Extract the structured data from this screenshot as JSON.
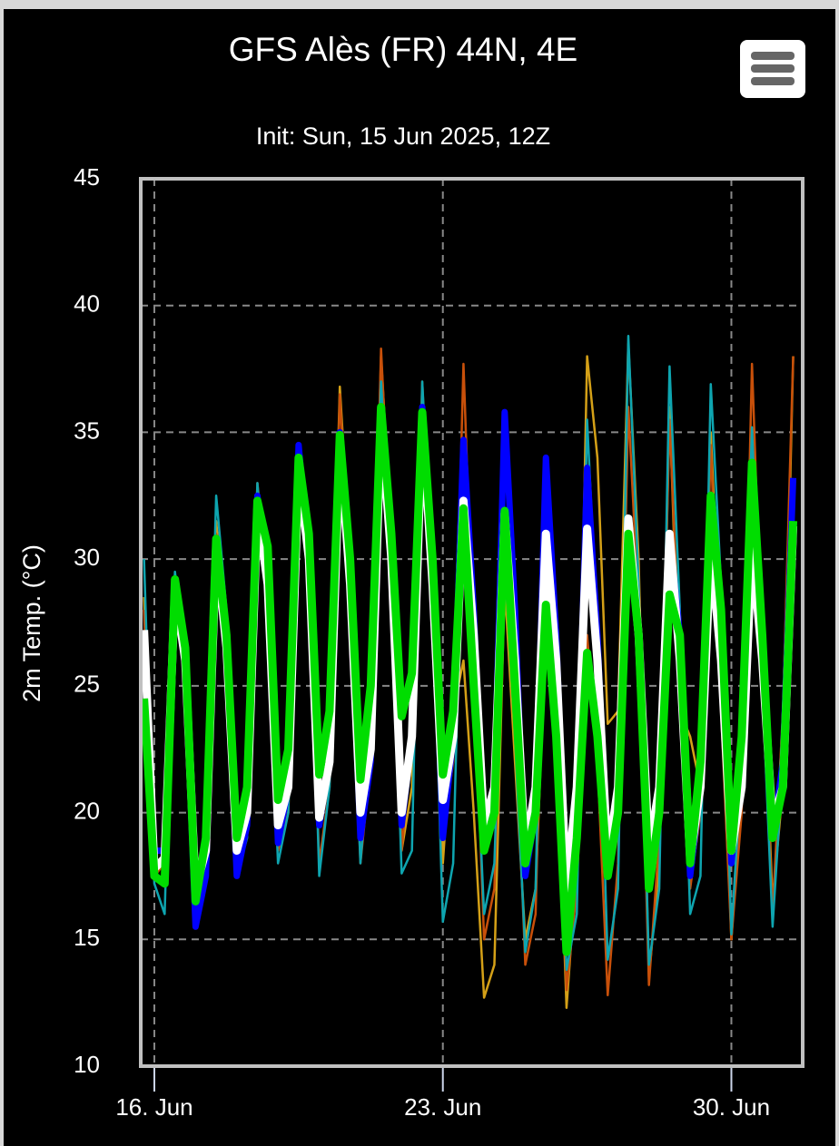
{
  "chart_data": {
    "type": "line",
    "title": "GFS Alès (FR) 44N, 4E",
    "subtitle": "Init: Sun, 15 Jun 2025, 12Z",
    "y_label": "2m Temp. (°C)",
    "x": [
      0.75,
      1,
      1.25,
      1.5,
      1.75,
      2,
      2.25,
      2.5,
      2.75,
      3,
      3.25,
      3.5,
      3.75,
      4,
      4.25,
      4.5,
      4.75,
      5,
      5.25,
      5.5,
      5.75,
      6,
      6.25,
      6.5,
      6.75,
      7,
      7.25,
      7.5,
      7.75,
      8,
      8.25,
      8.5,
      8.75,
      9,
      9.25,
      9.5,
      9.75,
      10,
      10.25,
      10.5,
      10.75,
      11,
      11.25,
      11.5,
      11.75,
      12,
      12.25,
      12.5,
      12.75,
      13,
      13.25,
      13.5,
      13.75,
      14,
      14.25,
      14.5,
      14.75,
      15,
      15.25,
      15.5,
      15.75,
      16,
      16.25,
      16.5
    ],
    "xlim": [
      0.67,
      16.73
    ],
    "xticks": [
      {
        "value": 1,
        "label": "16. Jun"
      },
      {
        "value": 8,
        "label": "23. Jun"
      },
      {
        "value": 15,
        "label": "30. Jun"
      }
    ],
    "ylim": [
      10,
      45
    ],
    "yticks": [
      10,
      15,
      20,
      25,
      30,
      35,
      40,
      45
    ],
    "grid": true,
    "series": [
      {
        "color": "#d4a017",
        "width": 2.5,
        "values": [
          28.5,
          18,
          18,
          29,
          25,
          16.5,
          18,
          31.5,
          27,
          18,
          20,
          32,
          28,
          18.5,
          21,
          34,
          31,
          19.5,
          22,
          36.8,
          30,
          19,
          22,
          38,
          31,
          18.5,
          21,
          36,
          29,
          18,
          24,
          26,
          20,
          12.7,
          14,
          29,
          22,
          15,
          17,
          27,
          24,
          12.3,
          18,
          38,
          34,
          23.5,
          24,
          38.5,
          30,
          13.5,
          18,
          36,
          24,
          23,
          21,
          35,
          26,
          15,
          21,
          33,
          26.5,
          16.5,
          21,
          38
        ]
      },
      {
        "color": "#c8500a",
        "width": 2.5,
        "values": [
          28,
          17.5,
          18,
          28.5,
          26,
          16,
          18,
          31,
          27,
          17.5,
          21,
          33,
          29,
          18.5,
          20,
          33.5,
          30,
          18,
          21,
          36.5,
          29,
          18,
          22,
          38.3,
          30,
          18.5,
          23,
          37,
          28,
          19,
          22,
          37.7,
          26,
          15,
          17,
          30,
          24,
          14,
          16,
          32,
          25,
          13,
          17,
          27,
          22,
          12.8,
          18,
          36,
          28,
          13.2,
          19,
          35.5,
          26,
          17,
          20,
          34.5,
          24,
          15,
          20,
          37.7,
          26,
          16,
          24,
          38
        ]
      },
      {
        "color": "#0ea5b0",
        "width": 2.5,
        "values": [
          30,
          17.2,
          16,
          29.5,
          26,
          15.8,
          18,
          32.5,
          28,
          17.5,
          19,
          33,
          28,
          18,
          20,
          33,
          31,
          17.5,
          21,
          35,
          28,
          18,
          23,
          37,
          30,
          17.6,
          18.5,
          37,
          29,
          15.7,
          18,
          33.5,
          25,
          16,
          18,
          30,
          23,
          14.5,
          17,
          34,
          26,
          13.8,
          16,
          35.5,
          27,
          14.2,
          17,
          38.8,
          29,
          14,
          17,
          37.6,
          28,
          16,
          17.5,
          36.9,
          29,
          15.2,
          22,
          35.2,
          25,
          15.5,
          22,
          33
        ]
      },
      {
        "color": "#0000ff",
        "width": 7,
        "values": [
          26.8,
          18.5,
          18.5,
          29,
          26,
          15.5,
          17.5,
          30.5,
          27,
          17.5,
          19.5,
          32.5,
          29,
          18.8,
          21,
          34.5,
          30,
          19.5,
          22,
          35,
          29,
          19,
          22,
          36,
          30,
          19.5,
          23,
          36,
          30,
          19,
          23,
          34.7,
          28,
          18.5,
          21,
          35.8,
          28,
          17.5,
          20,
          34,
          27,
          16.5,
          20,
          33.6,
          27,
          17.5,
          20,
          31.5,
          27,
          17,
          20,
          31,
          27,
          17.5,
          21,
          31,
          27,
          18,
          22,
          32,
          27,
          19,
          22,
          33.2
        ]
      },
      {
        "color": "#ffffff",
        "width": 9,
        "values": [
          27.2,
          17.8,
          18.2,
          28.8,
          26,
          17,
          18.5,
          30.5,
          26.5,
          18.5,
          20,
          32,
          29,
          19.5,
          21,
          33.5,
          30,
          19.8,
          22,
          34.5,
          29,
          20,
          22.5,
          35.5,
          30,
          20,
          23,
          35.5,
          29,
          20.5,
          23,
          32.3,
          27,
          19.5,
          21,
          31.8,
          26,
          18.5,
          21,
          31,
          26,
          17,
          21,
          31.2,
          26,
          18.2,
          21,
          31.6,
          27,
          18.5,
          21,
          31,
          26,
          18.2,
          21,
          30.5,
          26,
          18.5,
          21,
          30.5,
          26,
          19.6,
          21,
          31.3
        ]
      },
      {
        "color": "#00dd00",
        "width": 9,
        "values": [
          24.5,
          17.5,
          17.2,
          29.2,
          26.5,
          16.5,
          19,
          30.8,
          27,
          19,
          21,
          32.3,
          30.5,
          20.5,
          22.5,
          34,
          31,
          21.5,
          24,
          34.9,
          30,
          21.3,
          25,
          36,
          31,
          23.8,
          25.5,
          35.8,
          30,
          21.5,
          24,
          32,
          25,
          18.5,
          20,
          31.9,
          25,
          18,
          20,
          28.2,
          23,
          14.5,
          19,
          26.3,
          23,
          17.5,
          20,
          31,
          27,
          17,
          20,
          28.6,
          27,
          18,
          22,
          32.5,
          28,
          18.5,
          23,
          33.8,
          27,
          19,
          21,
          31.5
        ]
      }
    ]
  }
}
